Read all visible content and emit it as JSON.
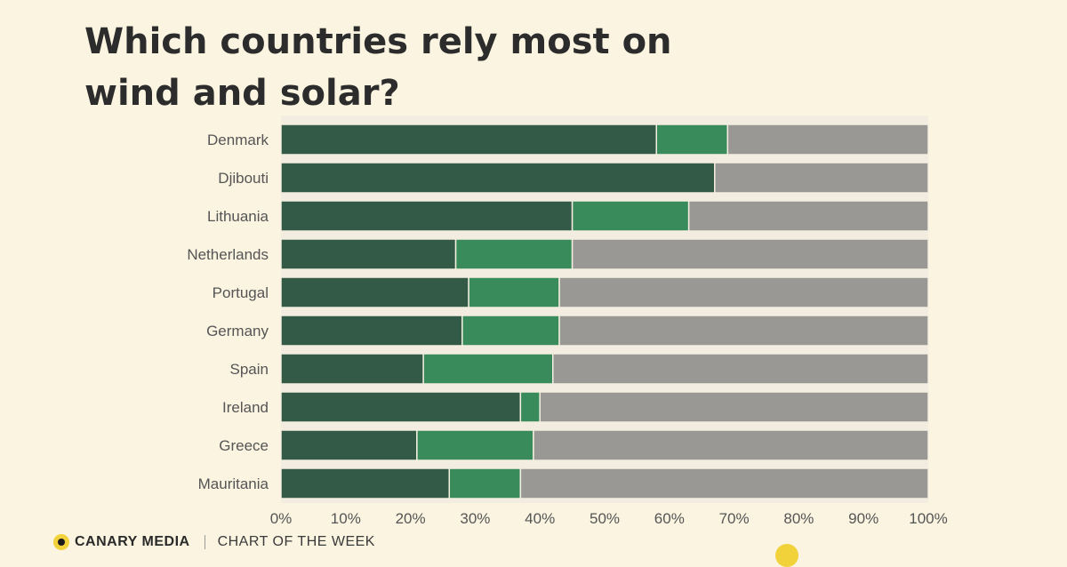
{
  "title": "Which countries rely most on wind and solar?",
  "footer": {
    "brand": "CANARY MEDIA",
    "section": "CHART OF THE WEEK",
    "logo_icon": "canary-dot-icon"
  },
  "colors": {
    "background": "#faf4e1",
    "series1": "#335a46",
    "series2": "#3a8b5c",
    "series3": "#999895",
    "plot_background": "#f2ede0"
  },
  "chart_data": {
    "type": "bar",
    "orientation": "horizontal",
    "stacked": true,
    "categories": [
      "Denmark",
      "Djibouti",
      "Lithuania",
      "Netherlands",
      "Portugal",
      "Germany",
      "Spain",
      "Ireland",
      "Greece",
      "Mauritania"
    ],
    "series": [
      {
        "values": [
          58,
          67,
          45,
          27,
          29,
          28,
          22,
          37,
          21,
          26
        ]
      },
      {
        "values": [
          11,
          0,
          18,
          18,
          14,
          15,
          20,
          3,
          18,
          11
        ]
      },
      {
        "values": [
          31,
          33,
          37,
          55,
          57,
          57,
          58,
          60,
          61,
          63
        ]
      }
    ],
    "x_ticks": [
      "0%",
      "10%",
      "20%",
      "30%",
      "40%",
      "50%",
      "60%",
      "70%",
      "80%",
      "90%",
      "100%"
    ],
    "xlim": [
      0,
      100
    ],
    "xlabel": "",
    "ylabel": "",
    "grid": false,
    "legend": "none"
  }
}
